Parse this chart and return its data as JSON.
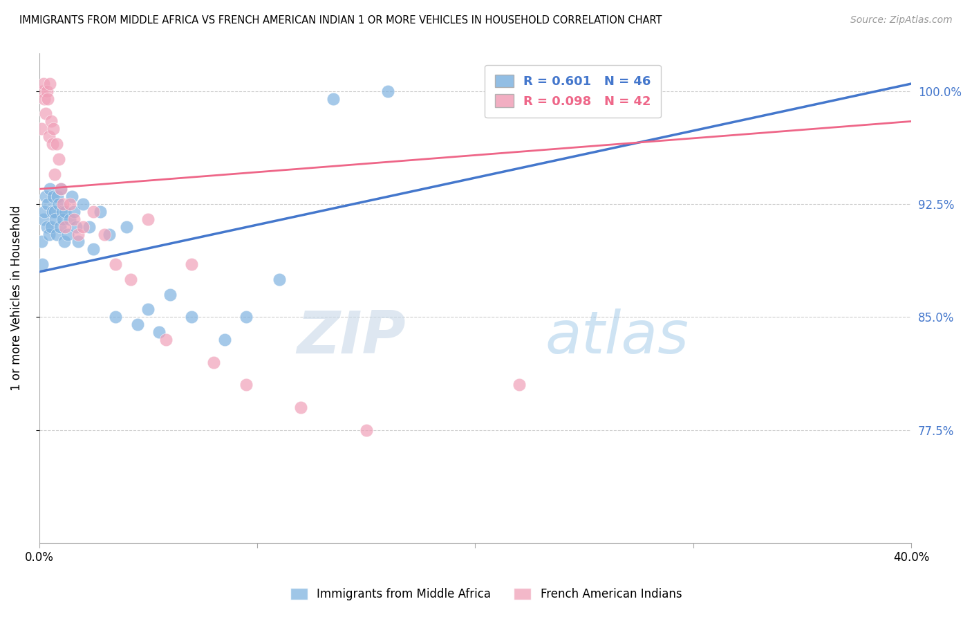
{
  "title": "IMMIGRANTS FROM MIDDLE AFRICA VS FRENCH AMERICAN INDIAN 1 OR MORE VEHICLES IN HOUSEHOLD CORRELATION CHART",
  "source": "Source: ZipAtlas.com",
  "ylabel": "1 or more Vehicles in Household",
  "ylabel_ticks": [
    100.0,
    92.5,
    85.0,
    77.5
  ],
  "ylabel_tick_labels": [
    "100.0%",
    "92.5%",
    "85.0%",
    "77.5%"
  ],
  "xmin": 0.0,
  "xmax": 40.0,
  "ymin": 70.0,
  "ymax": 102.5,
  "blue_R": 0.601,
  "blue_N": 46,
  "pink_R": 0.098,
  "pink_N": 42,
  "blue_color": "#7FB3E0",
  "pink_color": "#F0A0B8",
  "blue_line_color": "#4477CC",
  "pink_line_color": "#EE6688",
  "legend_blue_label": "Immigrants from Middle Africa",
  "legend_pink_label": "French American Indians",
  "watermark_zip": "ZIP",
  "watermark_atlas": "atlas",
  "blue_scatter_x": [
    0.1,
    0.15,
    0.2,
    0.25,
    0.3,
    0.35,
    0.4,
    0.45,
    0.5,
    0.55,
    0.6,
    0.65,
    0.7,
    0.75,
    0.8,
    0.85,
    0.9,
    0.95,
    1.0,
    1.05,
    1.1,
    1.15,
    1.2,
    1.3,
    1.4,
    1.5,
    1.6,
    1.7,
    1.8,
    2.0,
    2.3,
    2.5,
    2.8,
    3.2,
    3.5,
    4.0,
    4.5,
    5.0,
    5.5,
    6.0,
    7.0,
    8.5,
    9.5,
    11.0,
    13.5,
    16.0
  ],
  "blue_scatter_y": [
    90.0,
    88.5,
    91.5,
    92.0,
    93.0,
    91.0,
    92.5,
    90.5,
    93.5,
    91.0,
    92.0,
    93.0,
    92.0,
    91.5,
    90.5,
    93.0,
    92.5,
    91.0,
    93.5,
    92.0,
    91.5,
    90.0,
    92.0,
    90.5,
    91.5,
    93.0,
    92.0,
    91.0,
    90.0,
    92.5,
    91.0,
    89.5,
    92.0,
    90.5,
    85.0,
    91.0,
    84.5,
    85.5,
    84.0,
    86.5,
    85.0,
    83.5,
    85.0,
    87.5,
    99.5,
    100.0
  ],
  "pink_scatter_x": [
    0.1,
    0.15,
    0.2,
    0.25,
    0.3,
    0.35,
    0.4,
    0.45,
    0.5,
    0.55,
    0.6,
    0.65,
    0.7,
    0.8,
    0.9,
    1.0,
    1.1,
    1.2,
    1.4,
    1.6,
    1.8,
    2.0,
    2.5,
    3.0,
    3.5,
    4.2,
    5.0,
    5.8,
    7.0,
    8.0,
    9.5,
    12.0,
    15.0,
    22.0
  ],
  "pink_scatter_y": [
    97.5,
    100.0,
    100.5,
    99.5,
    98.5,
    100.0,
    99.5,
    97.0,
    100.5,
    98.0,
    96.5,
    97.5,
    94.5,
    96.5,
    95.5,
    93.5,
    92.5,
    91.0,
    92.5,
    91.5,
    90.5,
    91.0,
    92.0,
    90.5,
    88.5,
    87.5,
    91.5,
    83.5,
    88.5,
    82.0,
    80.5,
    79.0,
    77.5,
    80.5
  ],
  "blue_trendline_x": [
    0.0,
    40.0
  ],
  "blue_trendline_y": [
    88.0,
    100.5
  ],
  "pink_trendline_x": [
    0.0,
    40.0
  ],
  "pink_trendline_y": [
    93.5,
    98.0
  ]
}
